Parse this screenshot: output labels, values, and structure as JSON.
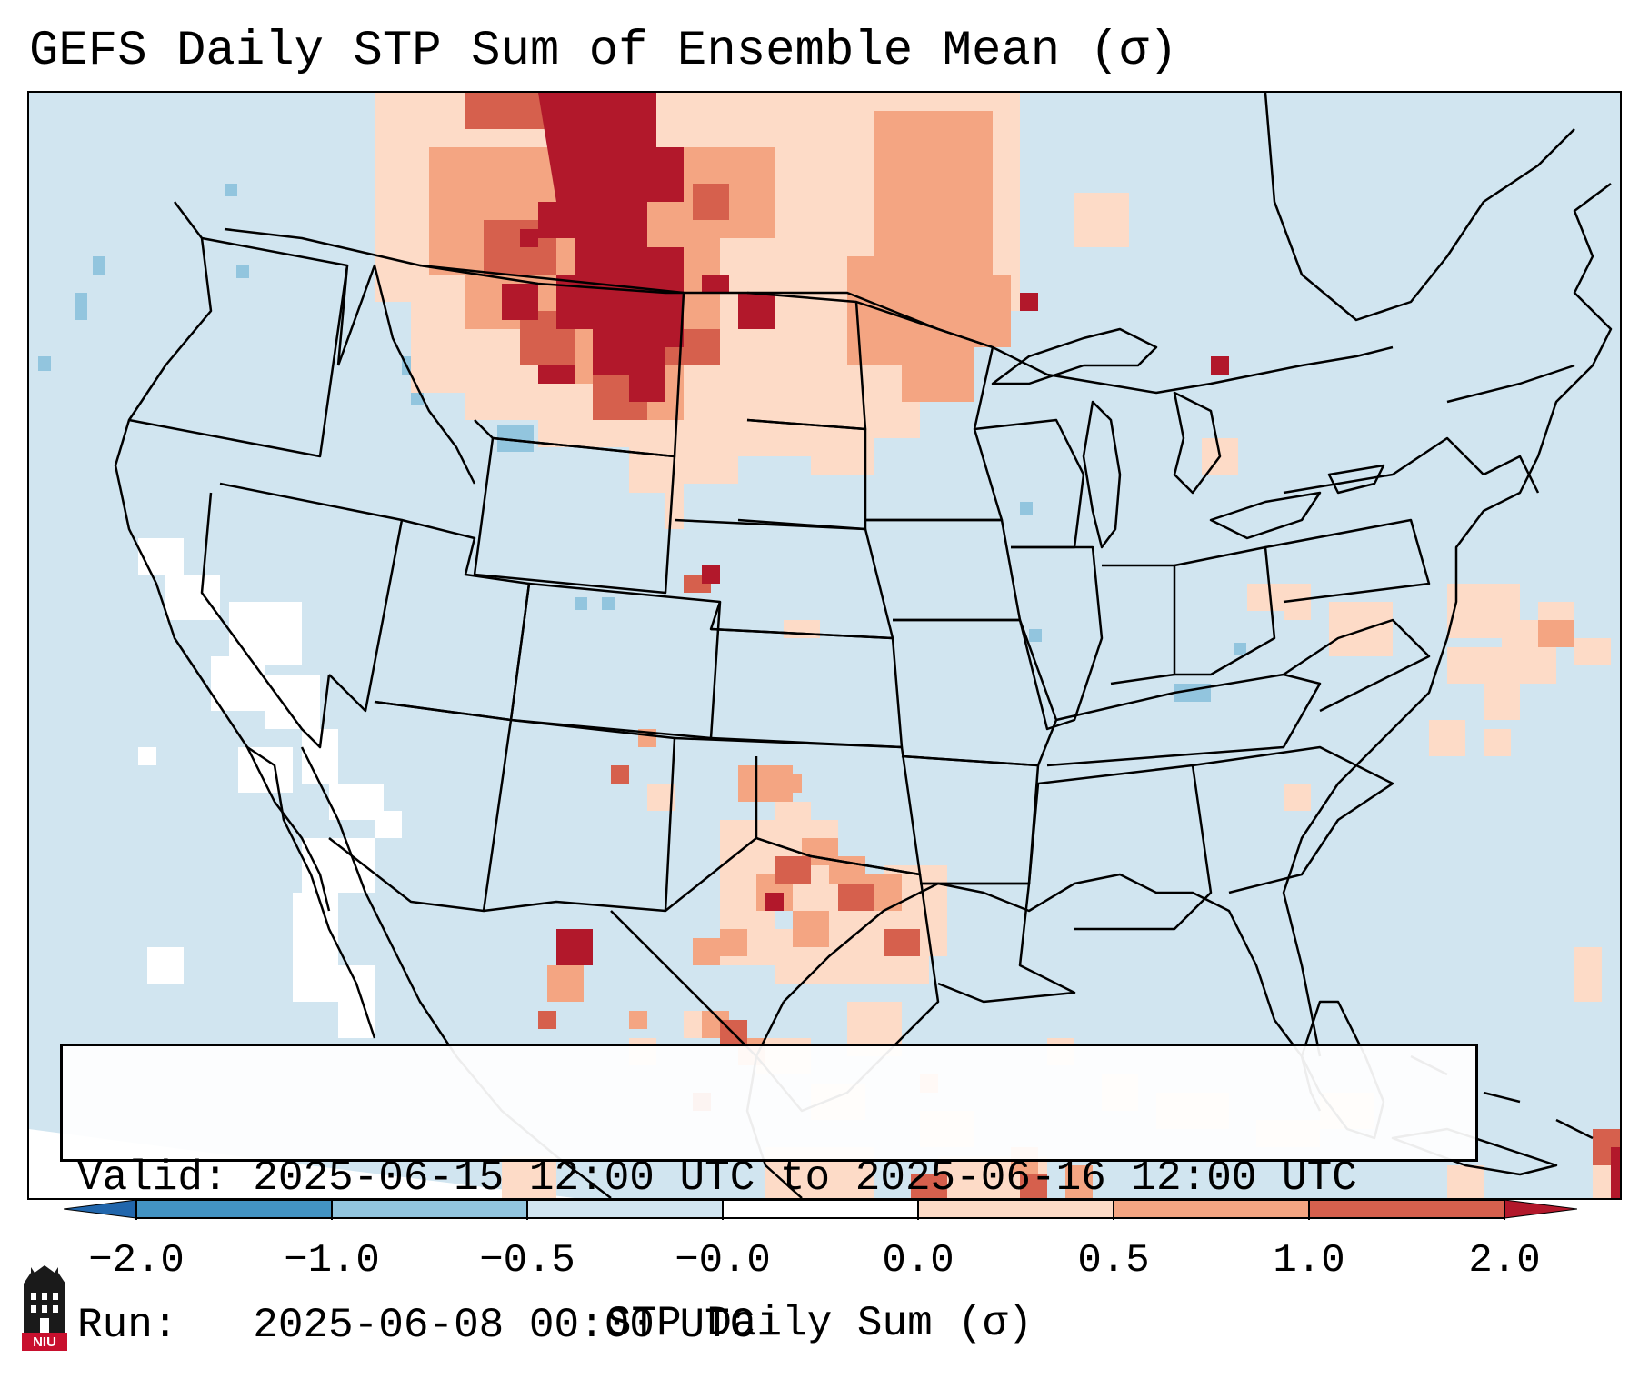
{
  "title": "GEFS Daily STP Sum of Ensemble Mean (σ)",
  "info": {
    "valid_line": "Valid: 2025-06-15 12:00 UTC to 2025-06-16 12:00 UTC",
    "run_line": "Run:   2025-06-08 00:00 UTC"
  },
  "colorbar": {
    "label": "STP Daily Sum (σ)",
    "ticks": [
      "−2.0",
      "−1.0",
      "−0.5",
      "−0.0",
      "0.0",
      "0.5",
      "1.0",
      "2.0"
    ],
    "colors": [
      "#2166ac",
      "#4393c3",
      "#92c5de",
      "#d1e5f0",
      "#ffffff",
      "#fddbc7",
      "#f4a582",
      "#d6604d",
      "#b2182b"
    ]
  },
  "logo": {
    "text": "NIU",
    "icon": "niu-castle-icon"
  },
  "map": {
    "background": "#d1e5f0",
    "mask": "#ffffff"
  }
}
